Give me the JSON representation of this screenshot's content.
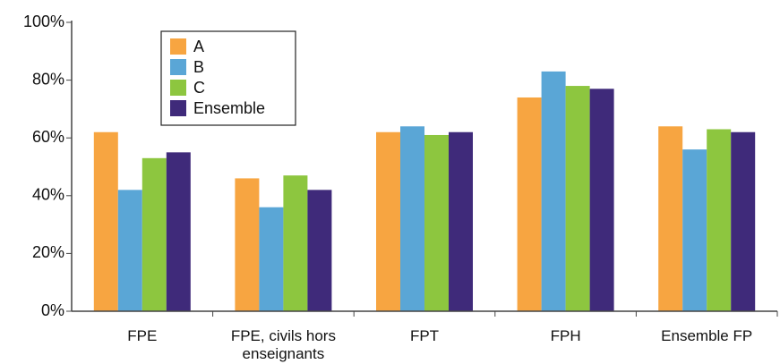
{
  "chart_data": {
    "type": "bar",
    "categories": [
      "FPE",
      "FPE, civils hors enseignants",
      "FPT",
      "FPH",
      "Ensemble FP"
    ],
    "series": [
      {
        "name": "A",
        "color": "#f7a541",
        "values": [
          62,
          46,
          62,
          74,
          64
        ]
      },
      {
        "name": "B",
        "color": "#5aa6d6",
        "values": [
          42,
          36,
          64,
          83,
          56
        ]
      },
      {
        "name": "C",
        "color": "#8dc63f",
        "values": [
          53,
          47,
          61,
          78,
          63
        ]
      },
      {
        "name": "Ensemble",
        "color": "#3f2a7a",
        "values": [
          55,
          42,
          62,
          77,
          62
        ]
      }
    ],
    "ylim": [
      0,
      100
    ],
    "yticks": [
      {
        "value": 0,
        "label": "0%"
      },
      {
        "value": 20,
        "label": "20%"
      },
      {
        "value": 40,
        "label": "40%"
      },
      {
        "value": 60,
        "label": "60%"
      },
      {
        "value": 80,
        "label": "80%"
      },
      {
        "value": 100,
        "label": "100%"
      }
    ],
    "grid": false,
    "legend": "upper left"
  }
}
